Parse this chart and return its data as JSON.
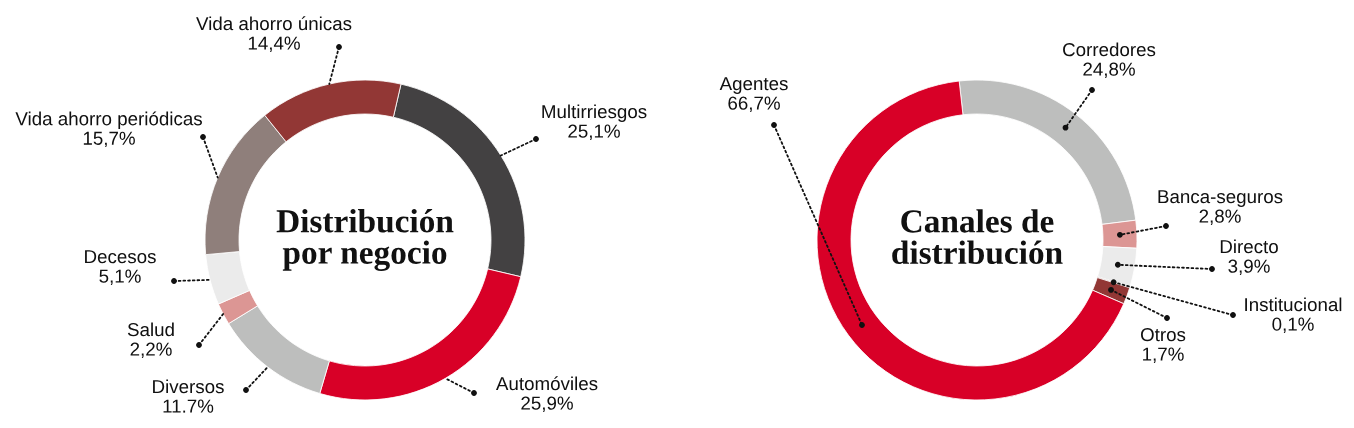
{
  "chart_data": [
    {
      "type": "donut",
      "title": "Distribución por negocio",
      "categories": [
        "Multirriesgos",
        "Automóviles",
        "Diversos",
        "Salud",
        "Decesos",
        "Vida ahorro periódicas",
        "Vida ahorro únicas"
      ],
      "values": [
        25.1,
        25.9,
        11.7,
        2.2,
        5.1,
        15.7,
        14.4
      ],
      "colors": [
        "#434142",
        "#d80027",
        "#bdbebd",
        "#dc9694",
        "#ebebeb",
        "#8f7f7b",
        "#923735"
      ],
      "value_labels": [
        "25,1%",
        "25,9%",
        "11.7%",
        "2,2%",
        "5,1%",
        "15,7%",
        "14,4%"
      ]
    },
    {
      "type": "donut",
      "title": "Canales de distribución",
      "categories": [
        "Corredores",
        "Banca-seguros",
        "Directo",
        "Institucional",
        "Otros",
        "Agentes"
      ],
      "values": [
        24.8,
        2.8,
        3.9,
        0.1,
        1.7,
        66.7
      ],
      "colors": [
        "#bdbebd",
        "#dc9694",
        "#ebebeb",
        "#8f7f7b",
        "#923735",
        "#d80027"
      ],
      "value_labels": [
        "24,8%",
        "2,8%",
        "3,9%",
        "0,1%",
        "1,7%",
        "66,7%"
      ]
    }
  ]
}
